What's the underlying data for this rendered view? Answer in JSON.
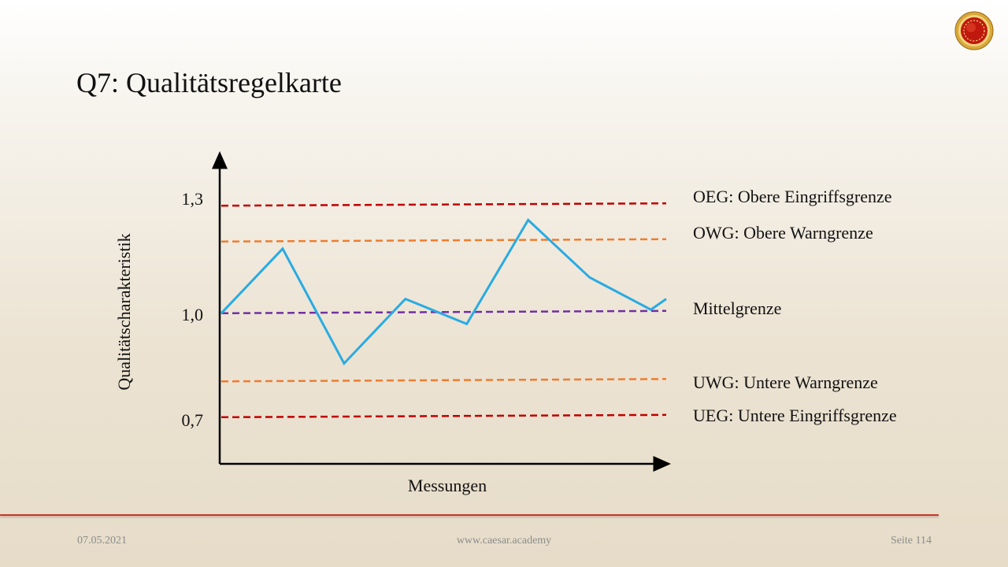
{
  "slide": {
    "title": "Q7: Qualitätsregelkarte"
  },
  "chart_data": {
    "type": "line",
    "title": "",
    "xlabel": "Messungen",
    "ylabel": "Qualitätscharakteristik",
    "yticks": [
      "1,3",
      "1,0",
      "0,7"
    ],
    "ytick_values": [
      1.3,
      1.0,
      0.7
    ],
    "ylim": [
      0.58,
      1.43
    ],
    "xlim": [
      1,
      8.25
    ],
    "grid": false,
    "series": [
      {
        "x": [
          1,
          2,
          3,
          4,
          5,
          6,
          7,
          8,
          8.25
        ],
        "values": [
          1.0,
          1.18,
          0.86,
          1.04,
          0.97,
          1.26,
          1.1,
          1.01,
          1.04
        ],
        "color": "#29abe2"
      }
    ],
    "limits": [
      {
        "label": "OEG: Obere Eingriffsgrenze",
        "value": 1.3,
        "color": "#c00000"
      },
      {
        "label": "OWG: Obere Warngrenze",
        "value": 1.2,
        "color": "#ed7d31"
      },
      {
        "label": "Mittelgrenze",
        "value": 1.0,
        "color": "#7030a0"
      },
      {
        "label": "UWG: Untere Warngrenze",
        "value": 0.81,
        "color": "#ed7d31"
      },
      {
        "label": "UEG: Untere Eingriffsgrenze",
        "value": 0.71,
        "color": "#c00000"
      }
    ]
  },
  "footer": {
    "date": "07.05.2021",
    "url": "www.caesar.academy",
    "page": "Seite 114"
  }
}
